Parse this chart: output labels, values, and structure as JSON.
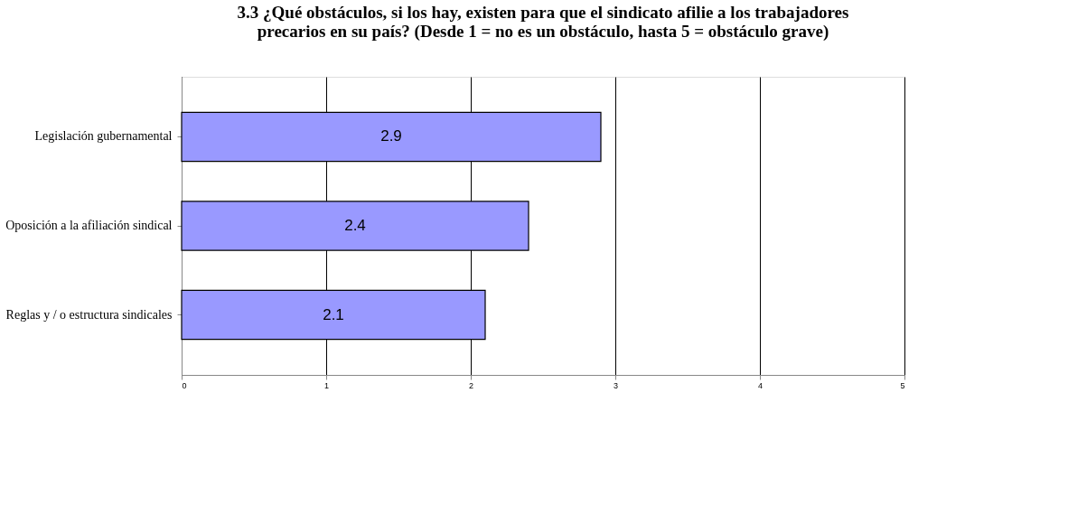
{
  "chart_data": {
    "type": "bar",
    "orientation": "horizontal",
    "title": "3.3  ¿Qué obstáculos, si los hay, existen para que el sindicato afilie a los trabajadores precarios en su país? (Desde 1 = no es un obstáculo, hasta 5 = obstáculo grave)",
    "categories": [
      "Legislación gubernamental",
      "Oposición a la afiliación sindical",
      "Reglas y / o estructura sindicales"
    ],
    "values": [
      2.9,
      2.4,
      2.1
    ],
    "color": "#9999ff",
    "xlim": [
      0,
      5
    ],
    "xticks": [
      0,
      1,
      2,
      3,
      4,
      5
    ],
    "grid": "x",
    "data_labels": true
  }
}
